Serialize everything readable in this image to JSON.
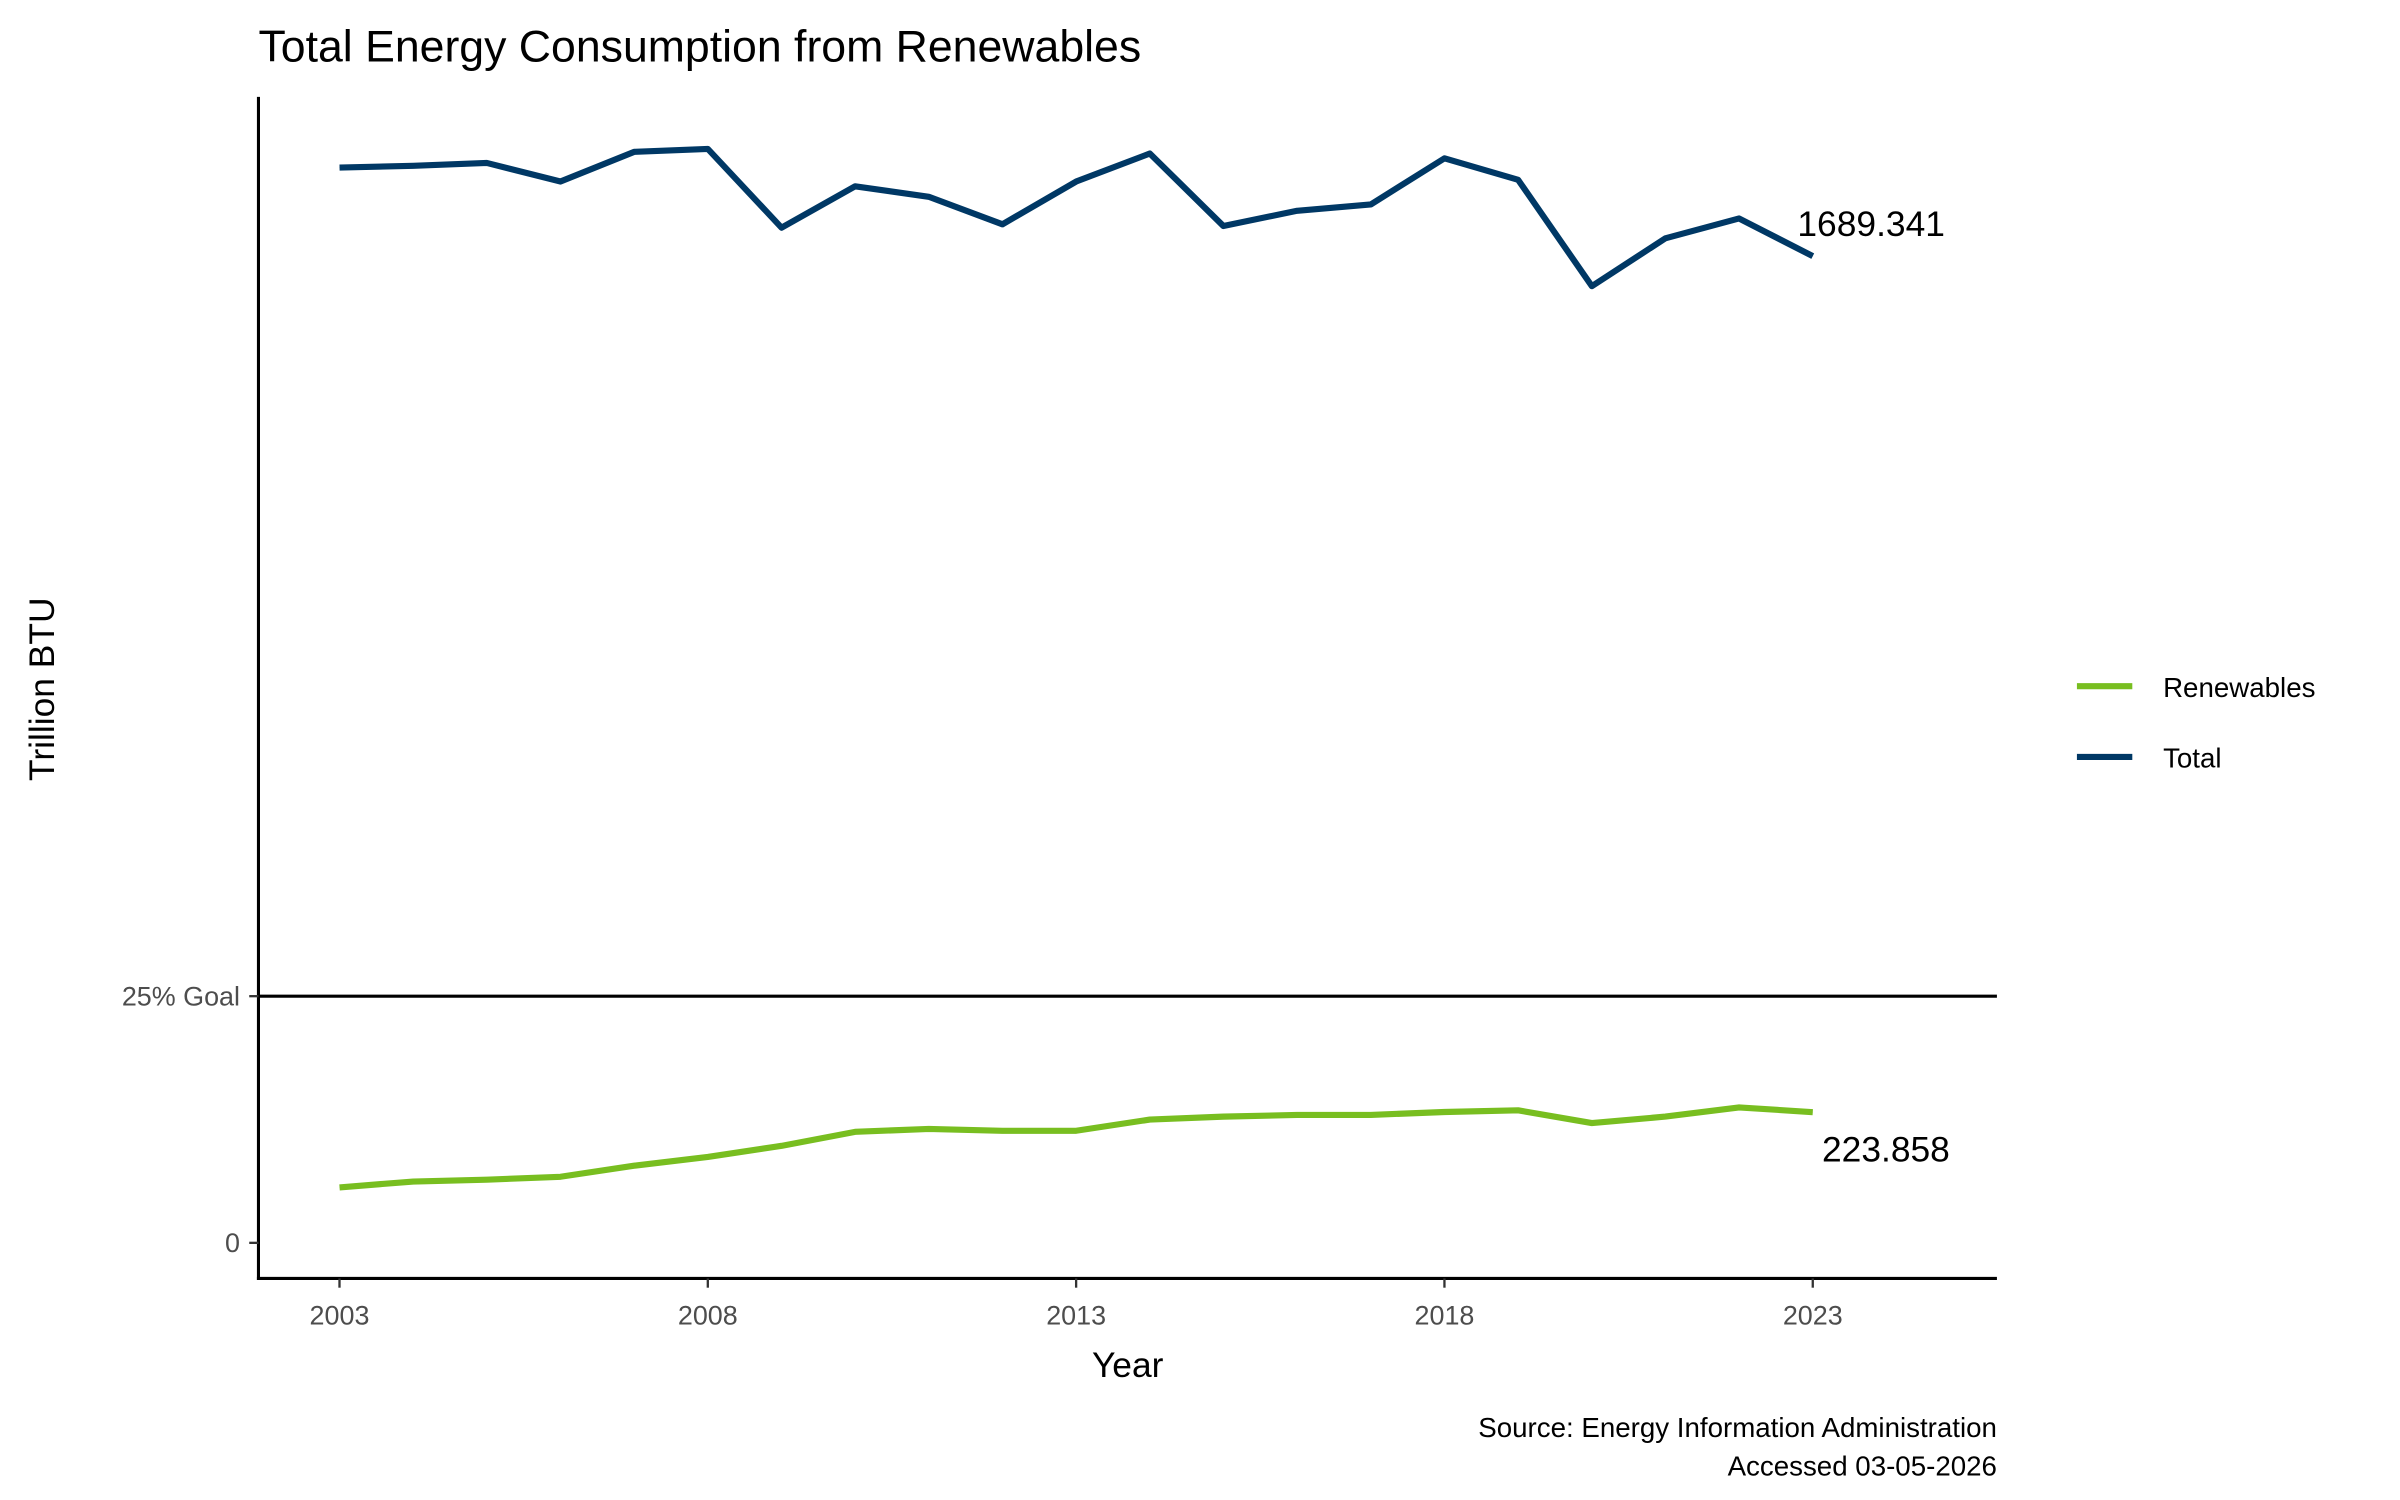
{
  "chart_data": {
    "type": "line",
    "title": "Total Energy Consumption from Renewables",
    "xlabel": "Year",
    "ylabel": "Trillion BTU",
    "caption": [
      "Source: Energy Information Administration",
      "Accessed 03-05-2026"
    ],
    "x": [
      2003,
      2004,
      2005,
      2006,
      2007,
      2008,
      2009,
      2010,
      2011,
      2012,
      2013,
      2014,
      2015,
      2016,
      2017,
      2018,
      2019,
      2020,
      2021,
      2022,
      2023
    ],
    "series": [
      {
        "name": "Renewables",
        "color": "#78be20",
        "values": [
          95,
          105,
          108,
          113,
          132,
          147,
          166,
          190,
          195,
          192,
          192,
          211,
          216,
          219,
          219,
          224,
          227,
          205,
          216,
          232,
          223.858
        ]
      },
      {
        "name": "Total",
        "color": "#003865",
        "values": [
          1841,
          1844,
          1849,
          1817,
          1868,
          1873,
          1738,
          1809,
          1791,
          1744,
          1817,
          1865,
          1741,
          1767,
          1778,
          1857,
          1820,
          1638,
          1720,
          1754,
          1689.341
        ]
      }
    ],
    "end_labels": [
      "223.858",
      "1689.341"
    ],
    "hline": {
      "label": "25% Goal",
      "value": 422.3,
      "color": "#000000"
    },
    "x_ticks": [
      2003,
      2008,
      2013,
      2018,
      2023
    ],
    "y_ticks": [
      {
        "value": 0,
        "label": "0"
      },
      {
        "value": 422.3,
        "label": "25% Goal"
      }
    ],
    "xlim": [
      2001.9,
      2025.5
    ],
    "ylim": [
      -61,
      1962
    ],
    "grid": false,
    "legend_position": "right"
  }
}
